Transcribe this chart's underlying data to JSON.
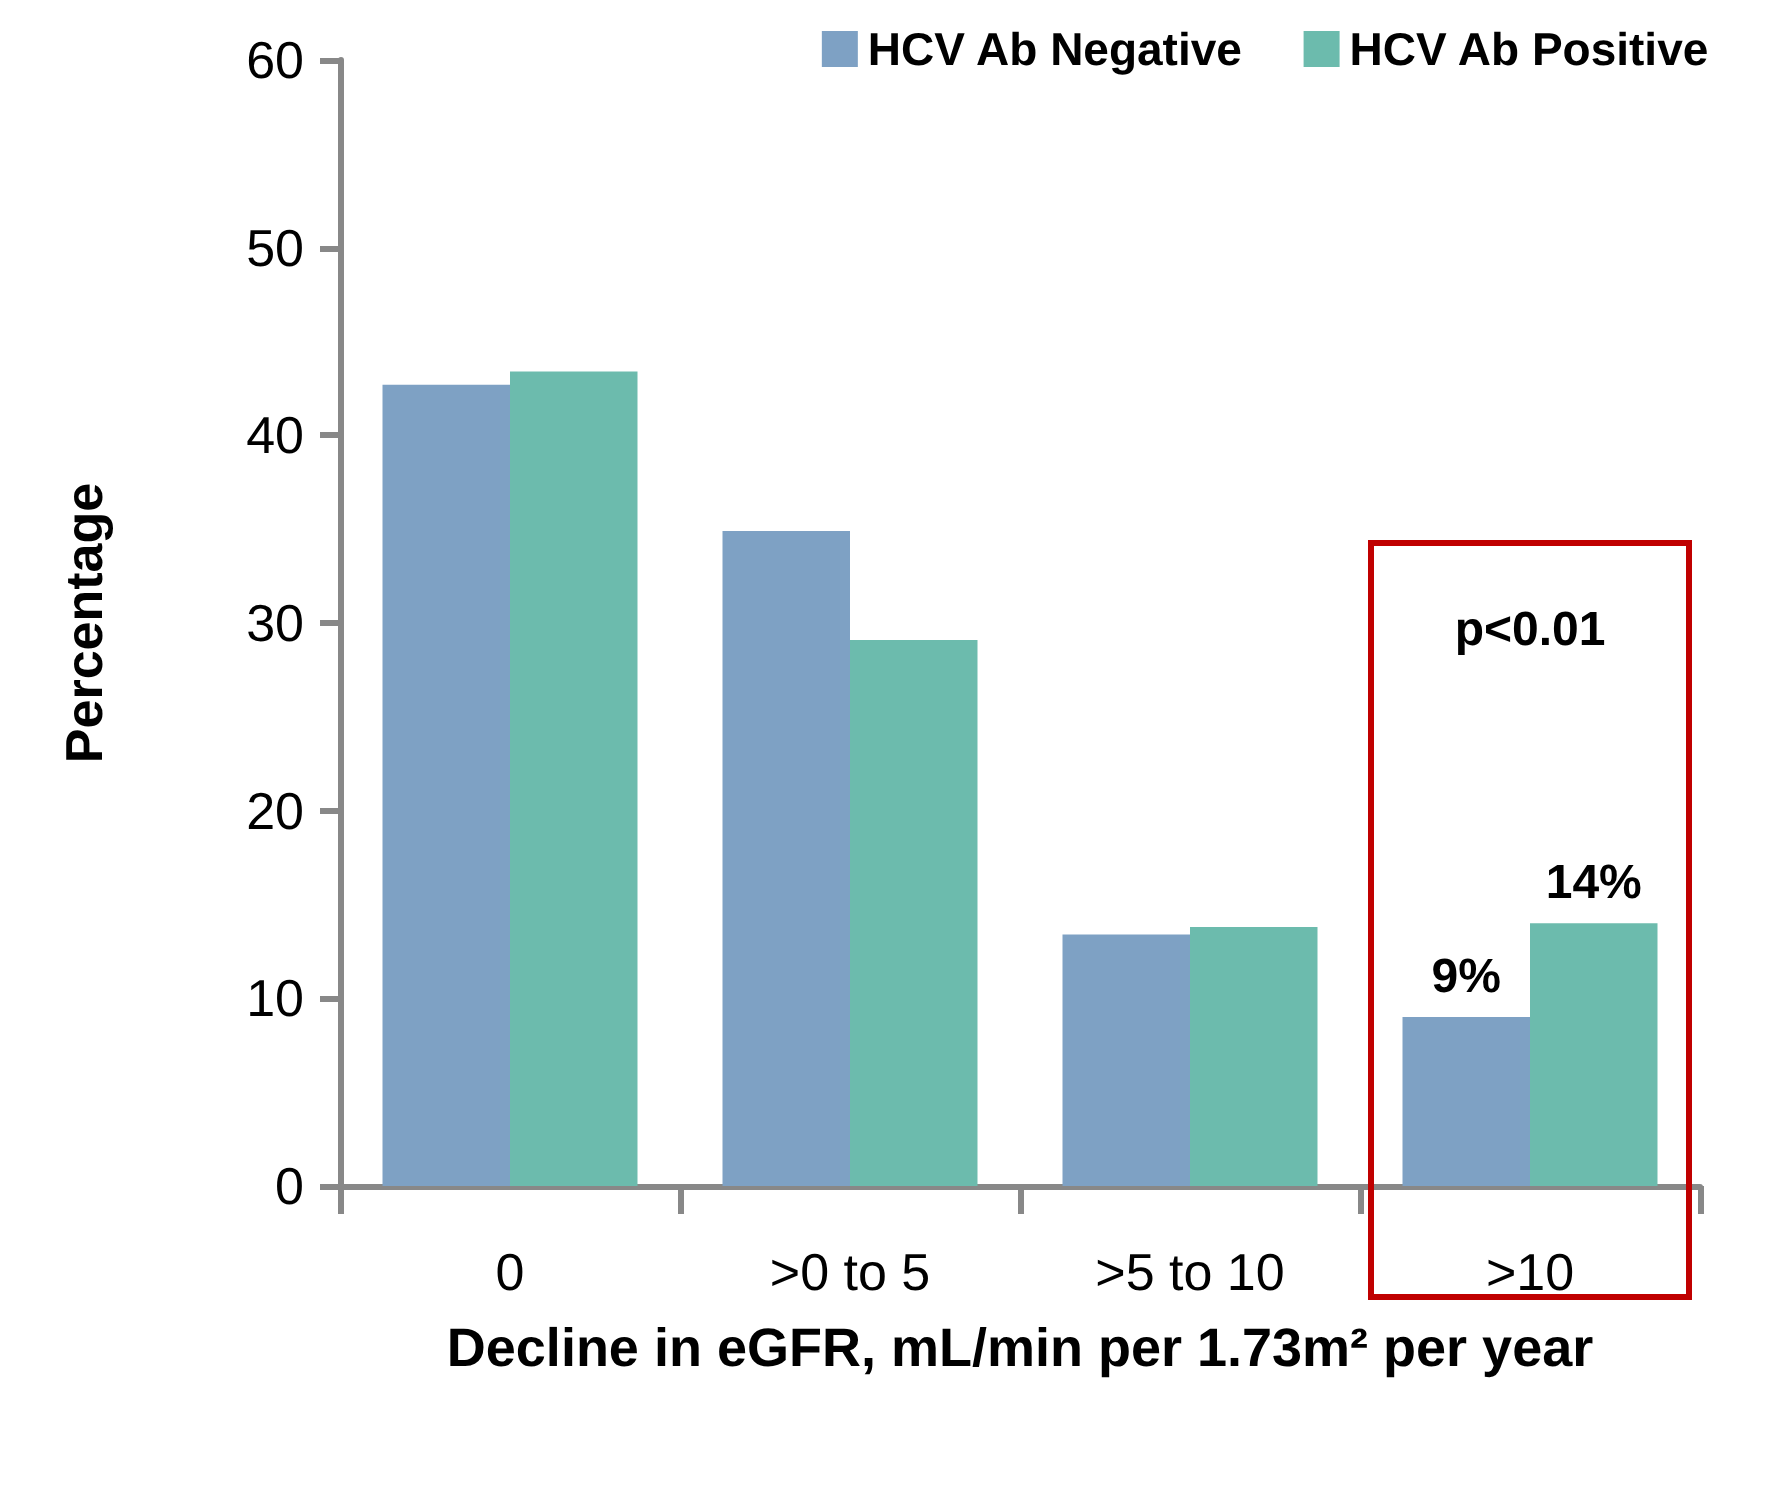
{
  "chart_data": {
    "type": "bar",
    "ylabel": "Percentage",
    "xlabel": "Decline in eGFR, mL/min per 1.73m² per year",
    "categories": [
      "0",
      ">0 to 5",
      ">5 to 10",
      ">10"
    ],
    "series": [
      {
        "name": "HCV Ab Negative",
        "color": "#7ea1c4",
        "values": [
          42.7,
          34.9,
          13.4,
          9
        ],
        "value_labels": [
          null,
          null,
          null,
          "9%"
        ]
      },
      {
        "name": "HCV Ab Positive",
        "color": "#6cbbad",
        "values": [
          43.4,
          29.1,
          13.8,
          14
        ],
        "value_labels": [
          null,
          null,
          null,
          "14%"
        ]
      }
    ],
    "ylim": [
      0,
      60
    ],
    "yticks": [
      0,
      10,
      20,
      30,
      40,
      50,
      60
    ],
    "grid": false,
    "legend": "top right",
    "annotations": [
      "p<0.01"
    ]
  }
}
